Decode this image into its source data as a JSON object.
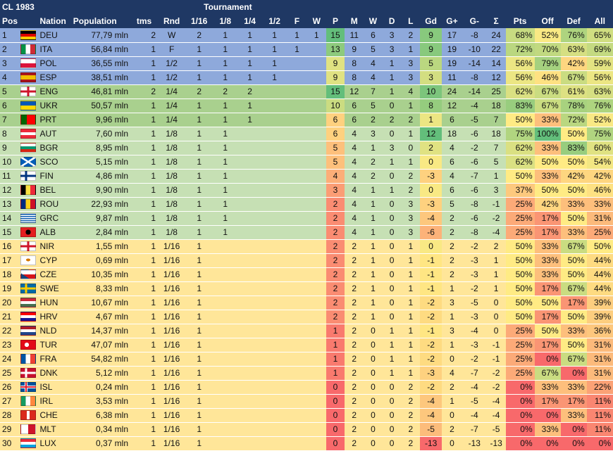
{
  "title": "CL 1983",
  "tournament_label": "Tournament",
  "headers": [
    "Pos",
    "",
    "Nation",
    "Population",
    "tms",
    "Rnd",
    "1/16",
    "1/8",
    "1/4",
    "1/2",
    "F",
    "W",
    "P",
    "M",
    "W",
    "D",
    "L",
    "Gd",
    "G+",
    "G-",
    "Σ",
    "Pts",
    "Off",
    "Def",
    "All"
  ],
  "rows": [
    {
      "pos": "1",
      "nation": "DEU",
      "pop": "77,79 mln",
      "tms": "2",
      "rnd": "W",
      "r16": "2",
      "r8": "1",
      "r4": "1",
      "r2": "1",
      "f": "1",
      "w": "1",
      "p": "15",
      "m": "11",
      "wi": "6",
      "d": "3",
      "l": "2",
      "gd": "9",
      "gp": "17",
      "gm": "-8",
      "sum": "24",
      "pts": "68%",
      "off": "52%",
      "def": "76%",
      "all": "65%",
      "flag": "deu",
      "band": "blue"
    },
    {
      "pos": "2",
      "nation": "ITA",
      "pop": "56,84 mln",
      "tms": "1",
      "rnd": "F",
      "r16": "1",
      "r8": "1",
      "r4": "1",
      "r2": "1",
      "f": "1",
      "w": "",
      "p": "13",
      "m": "9",
      "wi": "5",
      "d": "3",
      "l": "1",
      "gd": "9",
      "gp": "19",
      "gm": "-10",
      "sum": "22",
      "pts": "72%",
      "off": "70%",
      "def": "63%",
      "all": "69%",
      "flag": "ita",
      "band": "blue"
    },
    {
      "pos": "3",
      "nation": "POL",
      "pop": "36,55 mln",
      "tms": "1",
      "rnd": "1/2",
      "r16": "1",
      "r8": "1",
      "r4": "1",
      "r2": "1",
      "f": "",
      "w": "",
      "p": "9",
      "m": "8",
      "wi": "4",
      "d": "1",
      "l": "3",
      "gd": "5",
      "gp": "19",
      "gm": "-14",
      "sum": "14",
      "pts": "56%",
      "off": "79%",
      "def": "42%",
      "all": "59%",
      "flag": "pol",
      "band": "blue"
    },
    {
      "pos": "4",
      "nation": "ESP",
      "pop": "38,51 mln",
      "tms": "1",
      "rnd": "1/2",
      "r16": "1",
      "r8": "1",
      "r4": "1",
      "r2": "1",
      "f": "",
      "w": "",
      "p": "9",
      "m": "8",
      "wi": "4",
      "d": "1",
      "l": "3",
      "gd": "3",
      "gp": "11",
      "gm": "-8",
      "sum": "12",
      "pts": "56%",
      "off": "46%",
      "def": "67%",
      "all": "56%",
      "flag": "esp",
      "band": "blue"
    },
    {
      "pos": "5",
      "nation": "ENG",
      "pop": "46,81 mln",
      "tms": "2",
      "rnd": "1/4",
      "r16": "2",
      "r8": "2",
      "r4": "2",
      "r2": "",
      "f": "",
      "w": "",
      "p": "15",
      "m": "12",
      "wi": "7",
      "d": "1",
      "l": "4",
      "gd": "10",
      "gp": "24",
      "gm": "-14",
      "sum": "25",
      "pts": "62%",
      "off": "67%",
      "def": "61%",
      "all": "63%",
      "flag": "eng",
      "band": "green"
    },
    {
      "pos": "6",
      "nation": "UKR",
      "pop": "50,57 mln",
      "tms": "1",
      "rnd": "1/4",
      "r16": "1",
      "r8": "1",
      "r4": "1",
      "r2": "",
      "f": "",
      "w": "",
      "p": "10",
      "m": "6",
      "wi": "5",
      "d": "0",
      "l": "1",
      "gd": "8",
      "gp": "12",
      "gm": "-4",
      "sum": "18",
      "pts": "83%",
      "off": "67%",
      "def": "78%",
      "all": "76%",
      "flag": "ukr",
      "band": "green"
    },
    {
      "pos": "7",
      "nation": "PRT",
      "pop": "9,96 mln",
      "tms": "1",
      "rnd": "1/4",
      "r16": "1",
      "r8": "1",
      "r4": "1",
      "r2": "",
      "f": "",
      "w": "",
      "p": "6",
      "m": "6",
      "wi": "2",
      "d": "2",
      "l": "2",
      "gd": "1",
      "gp": "6",
      "gm": "-5",
      "sum": "7",
      "pts": "50%",
      "off": "33%",
      "def": "72%",
      "all": "52%",
      "flag": "prt",
      "band": "green"
    },
    {
      "pos": "8",
      "nation": "AUT",
      "pop": "7,60 mln",
      "tms": "1",
      "rnd": "1/8",
      "r16": "1",
      "r8": "1",
      "r4": "",
      "r2": "",
      "f": "",
      "w": "",
      "p": "6",
      "m": "4",
      "wi": "3",
      "d": "0",
      "l": "1",
      "gd": "12",
      "gp": "18",
      "gm": "-6",
      "sum": "18",
      "pts": "75%",
      "off": "100%",
      "def": "50%",
      "all": "75%",
      "flag": "aut",
      "band": "light"
    },
    {
      "pos": "9",
      "nation": "BGR",
      "pop": "8,95 mln",
      "tms": "1",
      "rnd": "1/8",
      "r16": "1",
      "r8": "1",
      "r4": "",
      "r2": "",
      "f": "",
      "w": "",
      "p": "5",
      "m": "4",
      "wi": "1",
      "d": "3",
      "l": "0",
      "gd": "2",
      "gp": "4",
      "gm": "-2",
      "sum": "7",
      "pts": "62%",
      "off": "33%",
      "def": "83%",
      "all": "60%",
      "flag": "bgr",
      "band": "light"
    },
    {
      "pos": "10",
      "nation": "SCO",
      "pop": "5,15 mln",
      "tms": "1",
      "rnd": "1/8",
      "r16": "1",
      "r8": "1",
      "r4": "",
      "r2": "",
      "f": "",
      "w": "",
      "p": "5",
      "m": "4",
      "wi": "2",
      "d": "1",
      "l": "1",
      "gd": "0",
      "gp": "6",
      "gm": "-6",
      "sum": "5",
      "pts": "62%",
      "off": "50%",
      "def": "50%",
      "all": "54%",
      "flag": "sco",
      "band": "light"
    },
    {
      "pos": "11",
      "nation": "FIN",
      "pop": "4,86 mln",
      "tms": "1",
      "rnd": "1/8",
      "r16": "1",
      "r8": "1",
      "r4": "",
      "r2": "",
      "f": "",
      "w": "",
      "p": "4",
      "m": "4",
      "wi": "2",
      "d": "0",
      "l": "2",
      "gd": "-3",
      "gp": "4",
      "gm": "-7",
      "sum": "1",
      "pts": "50%",
      "off": "33%",
      "def": "42%",
      "all": "42%",
      "flag": "fin",
      "band": "light"
    },
    {
      "pos": "12",
      "nation": "BEL",
      "pop": "9,90 mln",
      "tms": "1",
      "rnd": "1/8",
      "r16": "1",
      "r8": "1",
      "r4": "",
      "r2": "",
      "f": "",
      "w": "",
      "p": "3",
      "m": "4",
      "wi": "1",
      "d": "1",
      "l": "2",
      "gd": "0",
      "gp": "6",
      "gm": "-6",
      "sum": "3",
      "pts": "37%",
      "off": "50%",
      "def": "50%",
      "all": "46%",
      "flag": "bel",
      "band": "light"
    },
    {
      "pos": "13",
      "nation": "ROU",
      "pop": "22,93 mln",
      "tms": "1",
      "rnd": "1/8",
      "r16": "1",
      "r8": "1",
      "r4": "",
      "r2": "",
      "f": "",
      "w": "",
      "p": "2",
      "m": "4",
      "wi": "1",
      "d": "0",
      "l": "3",
      "gd": "-3",
      "gp": "5",
      "gm": "-8",
      "sum": "-1",
      "pts": "25%",
      "off": "42%",
      "def": "33%",
      "all": "33%",
      "flag": "rou",
      "band": "light"
    },
    {
      "pos": "14",
      "nation": "GRC",
      "pop": "9,87 mln",
      "tms": "1",
      "rnd": "1/8",
      "r16": "1",
      "r8": "1",
      "r4": "",
      "r2": "",
      "f": "",
      "w": "",
      "p": "2",
      "m": "4",
      "wi": "1",
      "d": "0",
      "l": "3",
      "gd": "-4",
      "gp": "2",
      "gm": "-6",
      "sum": "-2",
      "pts": "25%",
      "off": "17%",
      "def": "50%",
      "all": "31%",
      "flag": "grc",
      "band": "light"
    },
    {
      "pos": "15",
      "nation": "ALB",
      "pop": "2,84 mln",
      "tms": "1",
      "rnd": "1/8",
      "r16": "1",
      "r8": "1",
      "r4": "",
      "r2": "",
      "f": "",
      "w": "",
      "p": "2",
      "m": "4",
      "wi": "1",
      "d": "0",
      "l": "3",
      "gd": "-6",
      "gp": "2",
      "gm": "-8",
      "sum": "-4",
      "pts": "25%",
      "off": "17%",
      "def": "33%",
      "all": "25%",
      "flag": "alb",
      "band": "light"
    },
    {
      "pos": "16",
      "nation": "NIR",
      "pop": "1,55 mln",
      "tms": "1",
      "rnd": "1/16",
      "r16": "1",
      "r8": "",
      "r4": "",
      "r2": "",
      "f": "",
      "w": "",
      "p": "2",
      "m": "2",
      "wi": "1",
      "d": "0",
      "l": "1",
      "gd": "0",
      "gp": "2",
      "gm": "-2",
      "sum": "2",
      "pts": "50%",
      "off": "33%",
      "def": "67%",
      "all": "50%",
      "flag": "nir",
      "band": "yellow"
    },
    {
      "pos": "17",
      "nation": "CYP",
      "pop": "0,69 mln",
      "tms": "1",
      "rnd": "1/16",
      "r16": "1",
      "r8": "",
      "r4": "",
      "r2": "",
      "f": "",
      "w": "",
      "p": "2",
      "m": "2",
      "wi": "1",
      "d": "0",
      "l": "1",
      "gd": "-1",
      "gp": "2",
      "gm": "-3",
      "sum": "1",
      "pts": "50%",
      "off": "33%",
      "def": "50%",
      "all": "44%",
      "flag": "cyp",
      "band": "yellow"
    },
    {
      "pos": "18",
      "nation": "CZE",
      "pop": "10,35 mln",
      "tms": "1",
      "rnd": "1/16",
      "r16": "1",
      "r8": "",
      "r4": "",
      "r2": "",
      "f": "",
      "w": "",
      "p": "2",
      "m": "2",
      "wi": "1",
      "d": "0",
      "l": "1",
      "gd": "-1",
      "gp": "2",
      "gm": "-3",
      "sum": "1",
      "pts": "50%",
      "off": "33%",
      "def": "50%",
      "all": "44%",
      "flag": "cze",
      "band": "yellow"
    },
    {
      "pos": "19",
      "nation": "SWE",
      "pop": "8,33 mln",
      "tms": "1",
      "rnd": "1/16",
      "r16": "1",
      "r8": "",
      "r4": "",
      "r2": "",
      "f": "",
      "w": "",
      "p": "2",
      "m": "2",
      "wi": "1",
      "d": "0",
      "l": "1",
      "gd": "-1",
      "gp": "1",
      "gm": "-2",
      "sum": "1",
      "pts": "50%",
      "off": "17%",
      "def": "67%",
      "all": "44%",
      "flag": "swe",
      "band": "yellow"
    },
    {
      "pos": "20",
      "nation": "HUN",
      "pop": "10,67 mln",
      "tms": "1",
      "rnd": "1/16",
      "r16": "1",
      "r8": "",
      "r4": "",
      "r2": "",
      "f": "",
      "w": "",
      "p": "2",
      "m": "2",
      "wi": "1",
      "d": "0",
      "l": "1",
      "gd": "-2",
      "gp": "3",
      "gm": "-5",
      "sum": "0",
      "pts": "50%",
      "off": "50%",
      "def": "17%",
      "all": "39%",
      "flag": "hun",
      "band": "yellow"
    },
    {
      "pos": "21",
      "nation": "HRV",
      "pop": "4,67 mln",
      "tms": "1",
      "rnd": "1/16",
      "r16": "1",
      "r8": "",
      "r4": "",
      "r2": "",
      "f": "",
      "w": "",
      "p": "2",
      "m": "2",
      "wi": "1",
      "d": "0",
      "l": "1",
      "gd": "-2",
      "gp": "1",
      "gm": "-3",
      "sum": "0",
      "pts": "50%",
      "off": "17%",
      "def": "50%",
      "all": "39%",
      "flag": "hrv",
      "band": "yellow"
    },
    {
      "pos": "22",
      "nation": "NLD",
      "pop": "14,37 mln",
      "tms": "1",
      "rnd": "1/16",
      "r16": "1",
      "r8": "",
      "r4": "",
      "r2": "",
      "f": "",
      "w": "",
      "p": "1",
      "m": "2",
      "wi": "0",
      "d": "1",
      "l": "1",
      "gd": "-1",
      "gp": "3",
      "gm": "-4",
      "sum": "0",
      "pts": "25%",
      "off": "50%",
      "def": "33%",
      "all": "36%",
      "flag": "nld",
      "band": "yellow"
    },
    {
      "pos": "23",
      "nation": "TUR",
      "pop": "47,07 mln",
      "tms": "1",
      "rnd": "1/16",
      "r16": "1",
      "r8": "",
      "r4": "",
      "r2": "",
      "f": "",
      "w": "",
      "p": "1",
      "m": "2",
      "wi": "0",
      "d": "1",
      "l": "1",
      "gd": "-2",
      "gp": "1",
      "gm": "-3",
      "sum": "-1",
      "pts": "25%",
      "off": "17%",
      "def": "50%",
      "all": "31%",
      "flag": "tur",
      "band": "yellow"
    },
    {
      "pos": "24",
      "nation": "FRA",
      "pop": "54,82 mln",
      "tms": "1",
      "rnd": "1/16",
      "r16": "1",
      "r8": "",
      "r4": "",
      "r2": "",
      "f": "",
      "w": "",
      "p": "1",
      "m": "2",
      "wi": "0",
      "d": "1",
      "l": "1",
      "gd": "-2",
      "gp": "0",
      "gm": "-2",
      "sum": "-1",
      "pts": "25%",
      "off": "0%",
      "def": "67%",
      "all": "31%",
      "flag": "fra",
      "band": "yellow"
    },
    {
      "pos": "25",
      "nation": "DNK",
      "pop": "5,12 mln",
      "tms": "1",
      "rnd": "1/16",
      "r16": "1",
      "r8": "",
      "r4": "",
      "r2": "",
      "f": "",
      "w": "",
      "p": "1",
      "m": "2",
      "wi": "0",
      "d": "1",
      "l": "1",
      "gd": "-3",
      "gp": "4",
      "gm": "-7",
      "sum": "-2",
      "pts": "25%",
      "off": "67%",
      "def": "0%",
      "all": "31%",
      "flag": "dnk",
      "band": "yellow"
    },
    {
      "pos": "26",
      "nation": "ISL",
      "pop": "0,24 mln",
      "tms": "1",
      "rnd": "1/16",
      "r16": "1",
      "r8": "",
      "r4": "",
      "r2": "",
      "f": "",
      "w": "",
      "p": "0",
      "m": "2",
      "wi": "0",
      "d": "0",
      "l": "2",
      "gd": "-2",
      "gp": "2",
      "gm": "-4",
      "sum": "-2",
      "pts": "0%",
      "off": "33%",
      "def": "33%",
      "all": "22%",
      "flag": "isl",
      "band": "yellow"
    },
    {
      "pos": "27",
      "nation": "IRL",
      "pop": "3,53 mln",
      "tms": "1",
      "rnd": "1/16",
      "r16": "1",
      "r8": "",
      "r4": "",
      "r2": "",
      "f": "",
      "w": "",
      "p": "0",
      "m": "2",
      "wi": "0",
      "d": "0",
      "l": "2",
      "gd": "-4",
      "gp": "1",
      "gm": "-5",
      "sum": "-4",
      "pts": "0%",
      "off": "17%",
      "def": "17%",
      "all": "11%",
      "flag": "irl",
      "band": "yellow"
    },
    {
      "pos": "28",
      "nation": "CHE",
      "pop": "6,38 mln",
      "tms": "1",
      "rnd": "1/16",
      "r16": "1",
      "r8": "",
      "r4": "",
      "r2": "",
      "f": "",
      "w": "",
      "p": "0",
      "m": "2",
      "wi": "0",
      "d": "0",
      "l": "2",
      "gd": "-4",
      "gp": "0",
      "gm": "-4",
      "sum": "-4",
      "pts": "0%",
      "off": "0%",
      "def": "33%",
      "all": "11%",
      "flag": "che",
      "band": "yellow"
    },
    {
      "pos": "29",
      "nation": "MLT",
      "pop": "0,34 mln",
      "tms": "1",
      "rnd": "1/16",
      "r16": "1",
      "r8": "",
      "r4": "",
      "r2": "",
      "f": "",
      "w": "",
      "p": "0",
      "m": "2",
      "wi": "0",
      "d": "0",
      "l": "2",
      "gd": "-5",
      "gp": "2",
      "gm": "-7",
      "sum": "-5",
      "pts": "0%",
      "off": "33%",
      "def": "0%",
      "all": "11%",
      "flag": "mlt",
      "band": "yellow"
    },
    {
      "pos": "30",
      "nation": "LUX",
      "pop": "0,37 mln",
      "tms": "1",
      "rnd": "1/16",
      "r16": "1",
      "r8": "",
      "r4": "",
      "r2": "",
      "f": "",
      "w": "",
      "p": "0",
      "m": "2",
      "wi": "0",
      "d": "0",
      "l": "2",
      "gd": "-13",
      "gp": "0",
      "gm": "-13",
      "sum": "-13",
      "pts": "0%",
      "off": "0%",
      "def": "0%",
      "all": "0%",
      "flag": "lux",
      "band": "yellow"
    }
  ],
  "colors": {
    "header_bg": "#1f3864",
    "band_blue": "#8ea9db",
    "band_green": "#a9d08e",
    "band_light": "#c6e0b4",
    "band_yellow": "#ffe699",
    "scale_high": "#63be7b",
    "scale_mid": "#ffeb84",
    "scale_low": "#f8696b"
  }
}
